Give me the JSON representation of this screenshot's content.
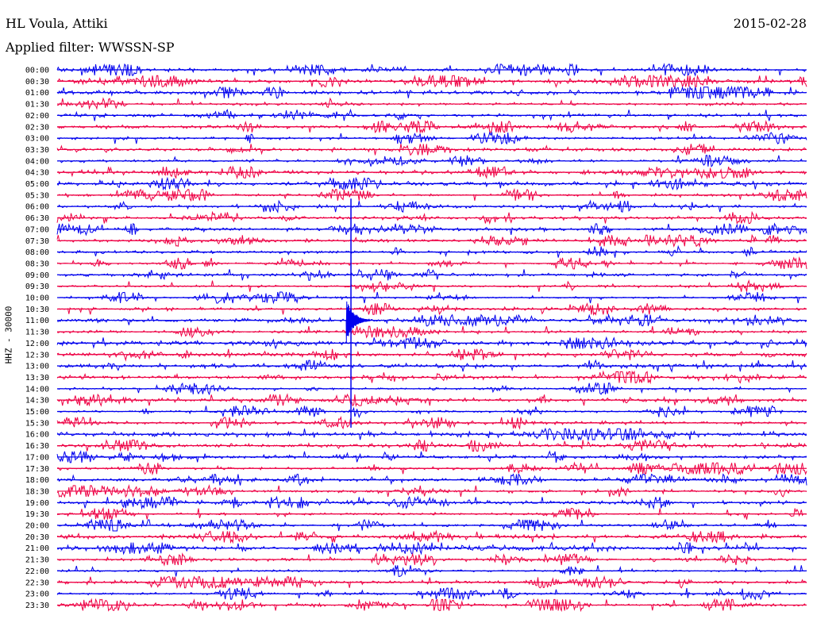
{
  "header": {
    "station": "HL Voula, Attiki",
    "date": "2015-02-28",
    "filter_label": "Applied filter:",
    "filter_value": "WWSSN-SP"
  },
  "chart_data": {
    "type": "line",
    "title": "HL Voula, Attiki",
    "subtitle": "Applied filter: WWSSN-SP",
    "ylabel": "HHZ - 30000",
    "line_colors": [
      "#0000ee",
      "#ee0044"
    ],
    "tick_labels": [
      "00:00",
      "00:30",
      "01:00",
      "01:30",
      "02:00",
      "02:30",
      "03:00",
      "03:30",
      "04:00",
      "04:30",
      "05:00",
      "05:30",
      "06:00",
      "06:30",
      "07:00",
      "07:30",
      "08:00",
      "08:30",
      "09:00",
      "09:30",
      "10:00",
      "10:30",
      "11:00",
      "11:30",
      "12:00",
      "12:30",
      "13:00",
      "13:30",
      "14:00",
      "14:30",
      "15:00",
      "15:30",
      "16:00",
      "16:30",
      "17:00",
      "17:30",
      "18:00",
      "18:30",
      "19:00",
      "19:30",
      "20:00",
      "20:30",
      "21:00",
      "21:30",
      "22:00",
      "22:30",
      "23:00",
      "23:30"
    ],
    "x_range_minutes_per_row": [
      0,
      30
    ],
    "traces_count": 48,
    "grid": false,
    "legend": "none"
  }
}
